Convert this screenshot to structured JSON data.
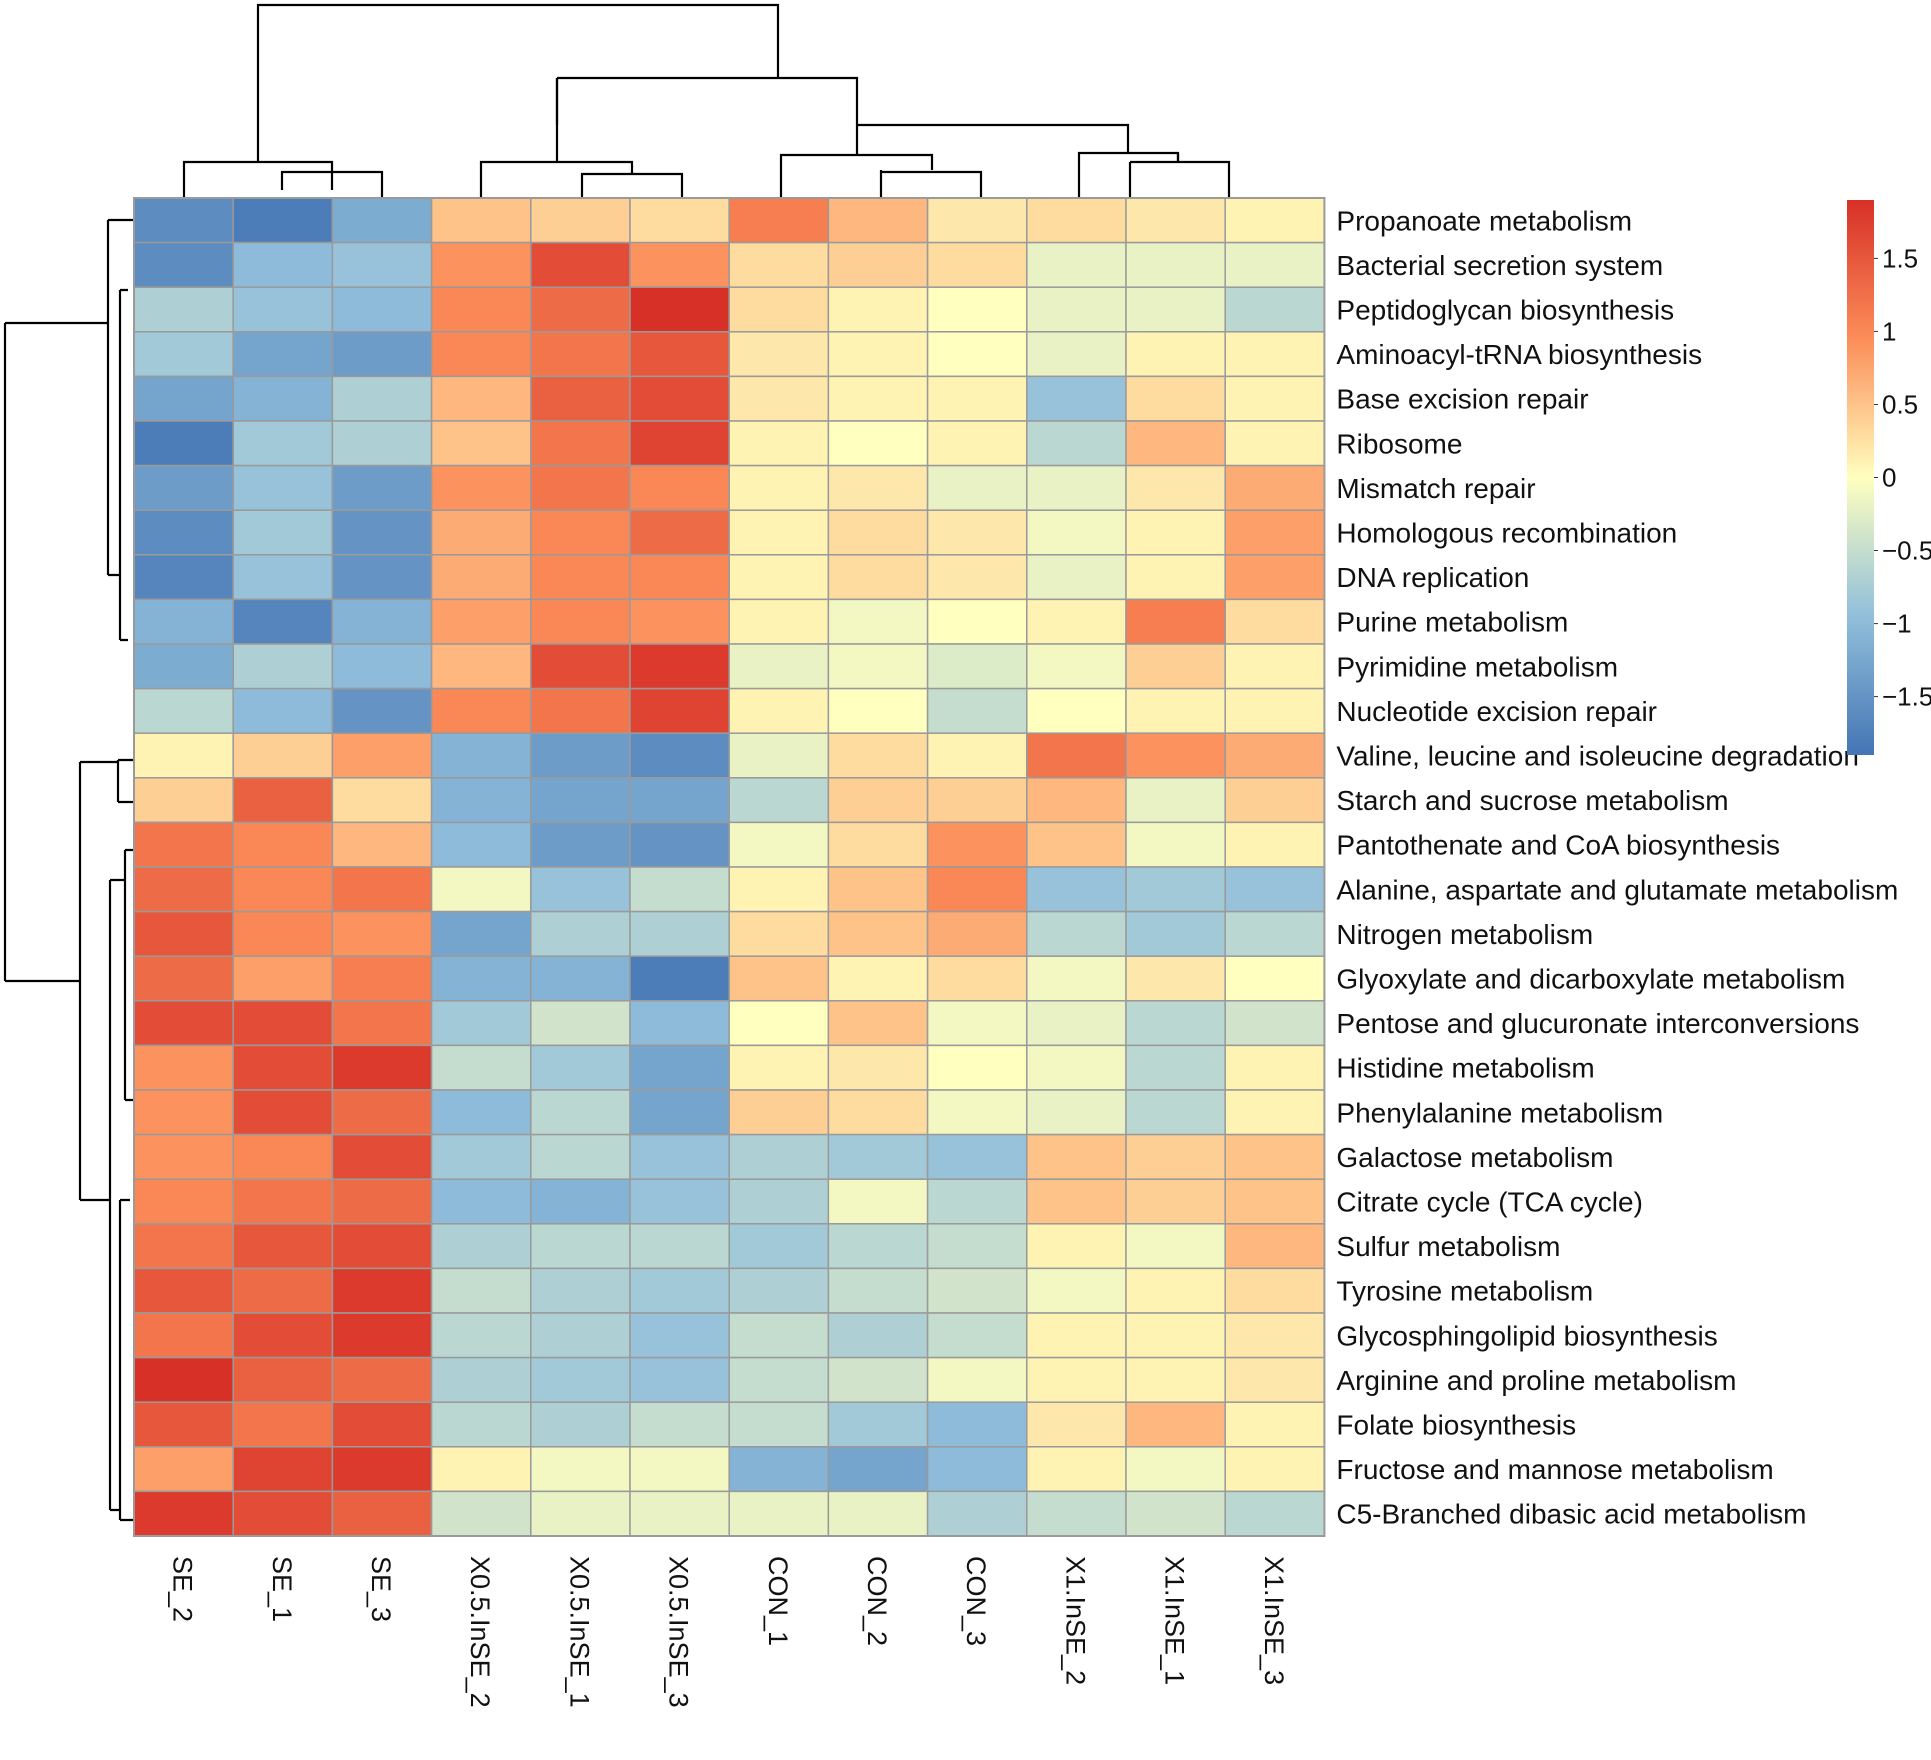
{
  "chart_data": {
    "type": "heatmap",
    "title": "",
    "columns": [
      "SE_2",
      "SE_1",
      "SE_3",
      "X0.5.InSE_2",
      "X0.5.InSE_1",
      "X0.5.InSE_3",
      "CON_1",
      "CON_2",
      "CON_3",
      "X1.InSE_2",
      "X1.InSE_1",
      "X1.InSE_3"
    ],
    "rows": [
      "Propanoate metabolism",
      "Bacterial secretion system",
      "Peptidoglycan biosynthesis",
      "Aminoacyl-tRNA biosynthesis",
      "Base excision repair",
      "Ribosome",
      "Mismatch repair",
      "Homologous recombination",
      "DNA replication",
      "Purine metabolism",
      "Pyrimidine metabolism",
      "Nucleotide excision repair",
      "Valine, leucine and isoleucine degradation",
      "Starch and sucrose metabolism",
      "Pantothenate and CoA biosynthesis",
      "Alanine, aspartate and glutamate metabolism",
      "Nitrogen metabolism",
      "Glyoxylate and dicarboxylate metabolism",
      "Pentose and glucuronate interconversions",
      "Histidine metabolism",
      "Phenylalanine metabolism",
      "Galactose metabolism",
      "Citrate cycle (TCA cycle)",
      "Sulfur metabolism",
      "Tyrosine metabolism",
      "Glycosphingolipid biosynthesis",
      "Arginine and proline metabolism",
      "Folate biosynthesis",
      "Fructose and mannose metabolism",
      "C5-Branched dibasic acid metabolism"
    ],
    "values": [
      [
        -1.6,
        -1.8,
        -1.2,
        0.5,
        0.4,
        0.3,
        1.1,
        0.6,
        0.2,
        0.3,
        0.2,
        0.1
      ],
      [
        -1.6,
        -1.0,
        -0.9,
        0.9,
        1.6,
        0.9,
        0.3,
        0.4,
        0.3,
        -0.2,
        -0.2,
        -0.2
      ],
      [
        -0.7,
        -0.9,
        -1.0,
        1.0,
        1.3,
        1.9,
        0.3,
        0.1,
        0.0,
        -0.2,
        -0.2,
        -0.6
      ],
      [
        -0.8,
        -1.3,
        -1.4,
        1.0,
        1.2,
        1.5,
        0.2,
        0.1,
        0.0,
        -0.2,
        0.1,
        0.1
      ],
      [
        -1.3,
        -1.1,
        -0.7,
        0.6,
        1.4,
        1.6,
        0.2,
        0.1,
        0.1,
        -0.9,
        0.3,
        0.1
      ],
      [
        -1.8,
        -0.8,
        -0.7,
        0.5,
        1.2,
        1.7,
        0.1,
        0.0,
        0.1,
        -0.6,
        0.6,
        0.1
      ],
      [
        -1.4,
        -0.9,
        -1.4,
        0.9,
        1.2,
        1.0,
        0.1,
        0.2,
        -0.2,
        -0.2,
        0.2,
        0.7
      ],
      [
        -1.6,
        -0.8,
        -1.5,
        0.7,
        1.0,
        1.3,
        0.1,
        0.3,
        0.2,
        -0.1,
        0.1,
        0.8
      ],
      [
        -1.7,
        -0.9,
        -1.5,
        0.7,
        1.0,
        1.0,
        0.1,
        0.3,
        0.2,
        -0.2,
        0.1,
        0.8
      ],
      [
        -1.1,
        -1.7,
        -1.1,
        0.8,
        1.0,
        0.9,
        0.1,
        -0.1,
        0.0,
        0.1,
        1.1,
        0.3
      ],
      [
        -1.2,
        -0.7,
        -1.0,
        0.6,
        1.6,
        1.8,
        -0.2,
        -0.1,
        -0.3,
        -0.1,
        0.4,
        0.1
      ],
      [
        -0.6,
        -1.0,
        -1.5,
        1.0,
        1.2,
        1.7,
        0.1,
        0.0,
        -0.5,
        0.0,
        0.1,
        0.1
      ],
      [
        0.1,
        0.4,
        0.8,
        -1.1,
        -1.4,
        -1.6,
        -0.2,
        0.3,
        0.1,
        1.2,
        0.9,
        0.7
      ],
      [
        0.4,
        1.4,
        0.3,
        -1.1,
        -1.3,
        -1.3,
        -0.6,
        0.4,
        0.4,
        0.6,
        -0.2,
        0.4
      ],
      [
        1.2,
        1.0,
        0.6,
        -1.0,
        -1.4,
        -1.5,
        -0.1,
        0.3,
        0.9,
        0.5,
        -0.1,
        0.1
      ],
      [
        1.3,
        1.0,
        1.2,
        -0.1,
        -0.9,
        -0.5,
        0.1,
        0.5,
        1.0,
        -0.9,
        -0.8,
        -0.9
      ],
      [
        1.5,
        1.0,
        0.9,
        -1.3,
        -0.7,
        -0.7,
        0.3,
        0.5,
        0.7,
        -0.6,
        -0.8,
        -0.6
      ],
      [
        1.3,
        0.8,
        1.1,
        -1.1,
        -1.1,
        -1.8,
        0.5,
        0.1,
        0.3,
        -0.1,
        0.2,
        0.0
      ],
      [
        1.6,
        1.6,
        1.2,
        -0.8,
        -0.4,
        -1.0,
        0.0,
        0.5,
        -0.1,
        -0.2,
        -0.6,
        -0.4
      ],
      [
        0.9,
        1.6,
        1.8,
        -0.5,
        -0.8,
        -1.3,
        0.1,
        0.2,
        0.0,
        -0.1,
        -0.6,
        0.1
      ],
      [
        0.9,
        1.6,
        1.3,
        -1.0,
        -0.6,
        -1.3,
        0.4,
        0.3,
        -0.1,
        -0.2,
        -0.6,
        0.1
      ],
      [
        0.9,
        1.0,
        1.6,
        -0.8,
        -0.6,
        -0.9,
        -0.7,
        -0.8,
        -0.9,
        0.5,
        0.4,
        0.5
      ],
      [
        1.0,
        1.2,
        1.3,
        -1.0,
        -1.1,
        -0.9,
        -0.7,
        -0.1,
        -0.6,
        0.5,
        0.4,
        0.5
      ],
      [
        1.2,
        1.5,
        1.6,
        -0.7,
        -0.6,
        -0.6,
        -0.8,
        -0.6,
        -0.5,
        0.1,
        -0.1,
        0.6
      ],
      [
        1.5,
        1.3,
        1.8,
        -0.5,
        -0.7,
        -0.8,
        -0.7,
        -0.5,
        -0.4,
        -0.1,
        0.1,
        0.3
      ],
      [
        1.2,
        1.6,
        1.8,
        -0.6,
        -0.7,
        -0.9,
        -0.5,
        -0.7,
        -0.5,
        0.1,
        0.1,
        0.2
      ],
      [
        1.9,
        1.4,
        1.3,
        -0.7,
        -0.8,
        -0.9,
        -0.5,
        -0.4,
        -0.1,
        0.1,
        0.1,
        0.2
      ],
      [
        1.5,
        1.2,
        1.6,
        -0.6,
        -0.7,
        -0.5,
        -0.5,
        -0.8,
        -1.0,
        0.2,
        0.6,
        0.1
      ],
      [
        0.8,
        1.7,
        1.8,
        0.1,
        -0.1,
        -0.1,
        -1.1,
        -1.3,
        -1.0,
        0.1,
        -0.1,
        0.1
      ],
      [
        1.8,
        1.6,
        1.4,
        -0.4,
        -0.2,
        -0.2,
        -0.2,
        -0.2,
        -0.7,
        -0.5,
        -0.4,
        -0.6
      ]
    ],
    "color_scale": {
      "min": -1.9,
      "max": 1.9,
      "low_color": "#4575b4",
      "mid_color": "#ffffbf",
      "high_color": "#d73027"
    },
    "legend": {
      "placement": "top-right",
      "ticks": [
        "1.5",
        "1",
        "0.5",
        "0",
        "−0.5",
        "−1",
        "−1.5"
      ],
      "tick_values": [
        1.5,
        1,
        0.5,
        0,
        -0.5,
        -1,
        -1.5
      ]
    }
  }
}
